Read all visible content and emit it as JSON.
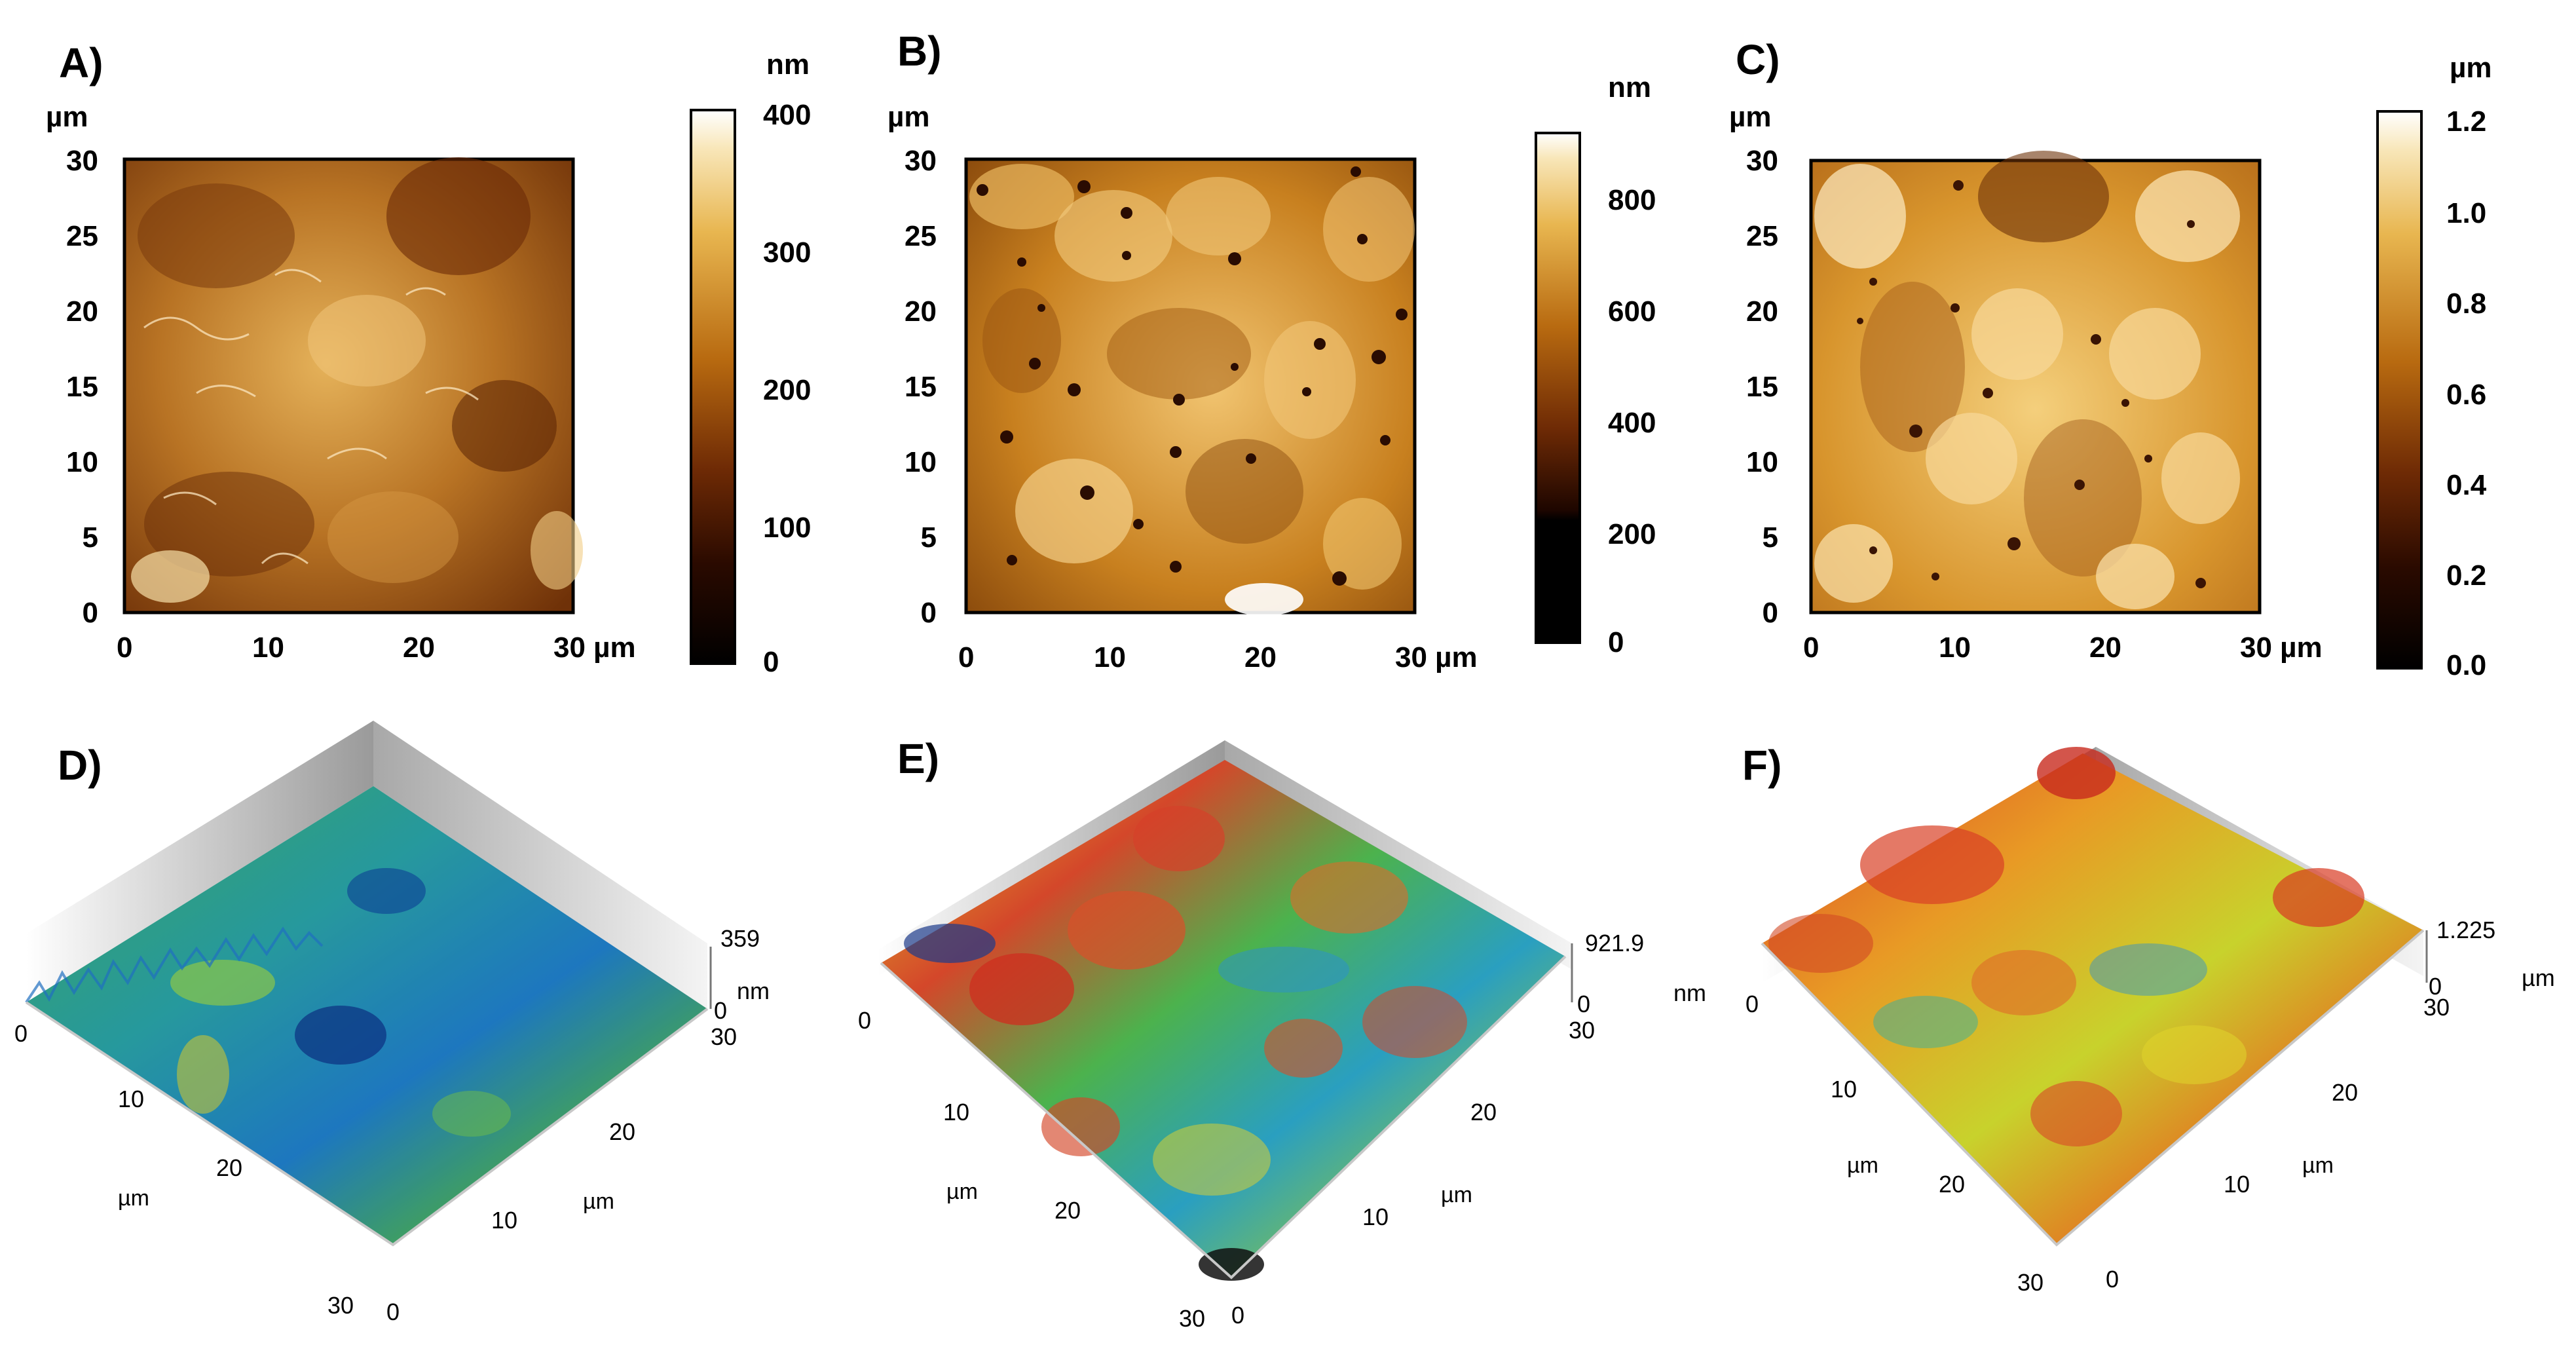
{
  "figure": {
    "panels_2d": [
      {
        "id": "A",
        "label": "A)",
        "axis_unit": "µm",
        "x_ticks": [
          "0",
          "10",
          "20",
          "30 µm"
        ],
        "y_ticks": [
          "0",
          "5",
          "10",
          "15",
          "20",
          "25",
          "30"
        ],
        "colorbar_unit": "nm",
        "colorbar_ticks": [
          "0",
          "100",
          "200",
          "300",
          "400"
        ]
      },
      {
        "id": "B",
        "label": "B)",
        "axis_unit": "µm",
        "x_ticks": [
          "0",
          "10",
          "20",
          "30 µm"
        ],
        "y_ticks": [
          "0",
          "5",
          "10",
          "15",
          "20",
          "25",
          "30"
        ],
        "colorbar_unit": "nm",
        "colorbar_ticks": [
          "0",
          "200",
          "400",
          "600",
          "800"
        ]
      },
      {
        "id": "C",
        "label": "C)",
        "axis_unit": "µm",
        "x_ticks": [
          "0",
          "10",
          "20",
          "30 µm"
        ],
        "y_ticks": [
          "0",
          "5",
          "10",
          "15",
          "20",
          "25",
          "30"
        ],
        "colorbar_unit": "µm",
        "colorbar_ticks": [
          "0.0",
          "0.2",
          "0.4",
          "0.6",
          "0.8",
          "1.0",
          "1.2"
        ]
      }
    ],
    "panels_3d": [
      {
        "id": "D",
        "label": "D)",
        "z_max": "359",
        "z_min": "0",
        "z_unit": "nm",
        "left_axis_ticks": [
          "0",
          "10",
          "20",
          "30"
        ],
        "right_axis_ticks": [
          "0",
          "10",
          "20",
          "30"
        ],
        "left_axis_unit": "µm",
        "right_axis_unit": "µm"
      },
      {
        "id": "E",
        "label": "E)",
        "z_max": "921.9",
        "z_min": "0",
        "z_unit": "nm",
        "left_axis_ticks": [
          "0",
          "10",
          "20",
          "30"
        ],
        "right_axis_ticks": [
          "0",
          "10",
          "20",
          "30"
        ],
        "left_axis_unit": "µm",
        "right_axis_unit": "µm"
      },
      {
        "id": "F",
        "label": "F)",
        "z_max": "1.225",
        "z_min": "0",
        "z_unit": "µm",
        "left_axis_ticks": [
          "0",
          "10",
          "20",
          "30"
        ],
        "right_axis_ticks": [
          "0",
          "10",
          "20",
          "30"
        ],
        "left_axis_unit": "µm",
        "right_axis_unit": "µm"
      }
    ]
  },
  "colors": {
    "afm_dark": "#1a0800",
    "afm_mid": "#b0680f",
    "afm_light": "#f6d488",
    "afm_white": "#ffffff",
    "surf_red": "#d22f1f",
    "surf_yellow": "#e0d21e",
    "surf_green": "#3cb54a",
    "surf_blue": "#1b5fc4"
  }
}
